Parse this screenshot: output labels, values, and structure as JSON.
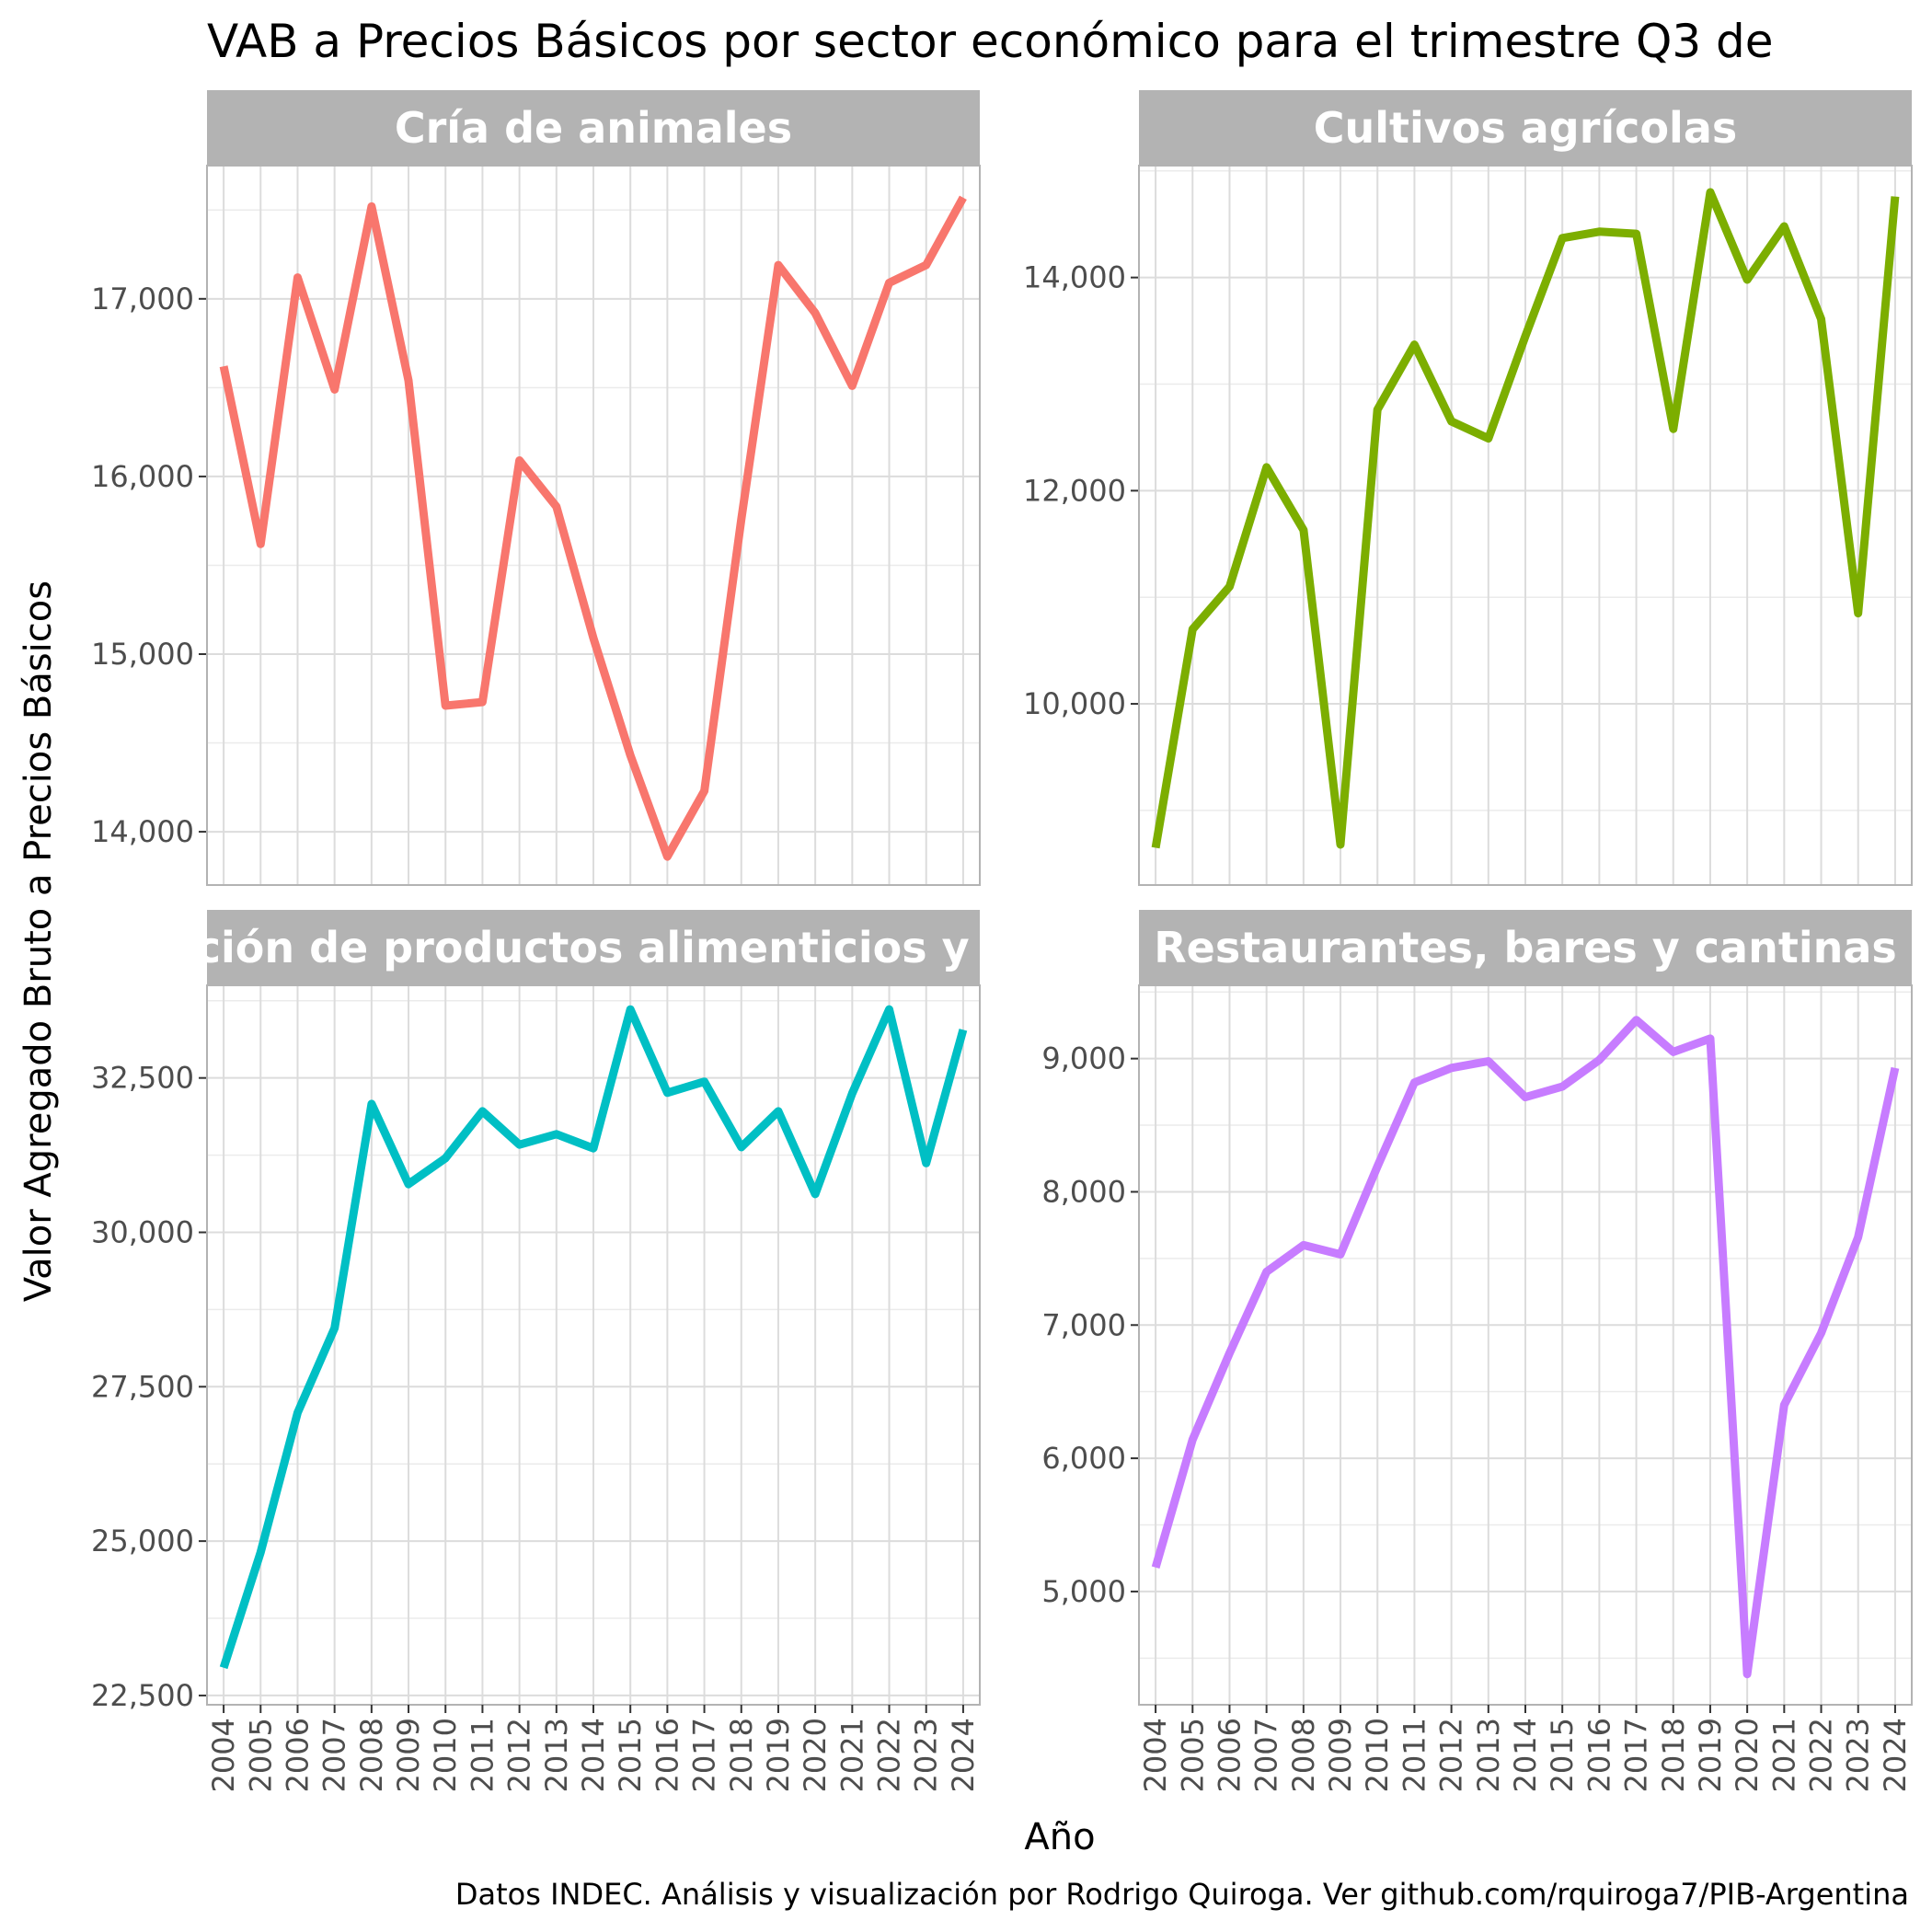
{
  "chart_data": {
    "type": "line",
    "title": "VAB a Precios Básicos por sector económico para el trimestre Q3 de",
    "xlabel": "Año",
    "ylabel": "Valor Agregado Bruto a Precios Básicos",
    "caption": "Datos INDEC. Análisis y visualización por Rodrigo Quiroga. Ver github.com/rquiroga7/PIB-Argentina",
    "x": [
      2004,
      2005,
      2006,
      2007,
      2008,
      2009,
      2010,
      2011,
      2012,
      2013,
      2014,
      2015,
      2016,
      2017,
      2018,
      2019,
      2020,
      2021,
      2022,
      2023,
      2024
    ],
    "x_tick_labels": [
      "2004",
      "2005",
      "2006",
      "2007",
      "2008",
      "2009",
      "2010",
      "2011",
      "2012",
      "2013",
      "2014",
      "2015",
      "2016",
      "2017",
      "2018",
      "2019",
      "2020",
      "2021",
      "2022",
      "2023",
      "2024"
    ],
    "xlim": [
      2003.55,
      2024.45
    ],
    "grid": true,
    "legend": "none",
    "facets": [
      {
        "strip": "Cría de animales",
        "color": "#F8766D",
        "ylim": [
          13700,
          17750
        ],
        "y_ticks": [
          14000,
          15000,
          16000,
          17000
        ],
        "y_tick_labels": [
          "14,000",
          "15,000",
          "16,000",
          "17,000"
        ],
        "values": [
          16620,
          15620,
          17120,
          16490,
          17520,
          16540,
          14710,
          14730,
          16090,
          15830,
          15090,
          14430,
          13860,
          14230,
          15760,
          17190,
          16920,
          16510,
          17090,
          17190,
          17570
        ]
      },
      {
        "strip": "Cultivos agrícolas",
        "color": "#7CAE00",
        "ylim": [
          8300,
          15050
        ],
        "y_ticks": [
          10000,
          12000,
          14000
        ],
        "y_tick_labels": [
          "10,000",
          "12,000",
          "14,000"
        ],
        "values": [
          8650,
          10700,
          11100,
          12220,
          11630,
          8680,
          12760,
          13370,
          12650,
          12490,
          13450,
          14370,
          14430,
          14410,
          12580,
          14800,
          13980,
          14480,
          13610,
          10850,
          14760
        ]
      },
      {
        "strip": "Elaboración de productos alimenticios y bebidas",
        "color": "#00BFC4",
        "ylim": [
          22350,
          34000
        ],
        "y_ticks": [
          22500,
          25000,
          27500,
          30000,
          32500
        ],
        "y_tick_labels": [
          "22,500",
          "25,000",
          "27,500",
          "30,000",
          "32,500"
        ],
        "values": [
          22950,
          24820,
          27080,
          28450,
          32080,
          30780,
          31200,
          31960,
          31420,
          31590,
          31360,
          33610,
          32260,
          32440,
          31380,
          31960,
          30620,
          32250,
          33610,
          31120,
          33280
        ]
      },
      {
        "strip": "Restaurantes, bares y cantinas",
        "color": "#C77CFF",
        "ylim": [
          4150,
          9550
        ],
        "y_ticks": [
          5000,
          6000,
          7000,
          8000,
          9000
        ],
        "y_tick_labels": [
          "5,000",
          "6,000",
          "7,000",
          "8,000",
          "9,000"
        ],
        "values": [
          5180,
          6140,
          6790,
          7400,
          7600,
          7530,
          8190,
          8820,
          8930,
          8980,
          8710,
          8790,
          8990,
          9290,
          9050,
          9150,
          4380,
          6400,
          6940,
          7660,
          8930
        ]
      }
    ]
  }
}
